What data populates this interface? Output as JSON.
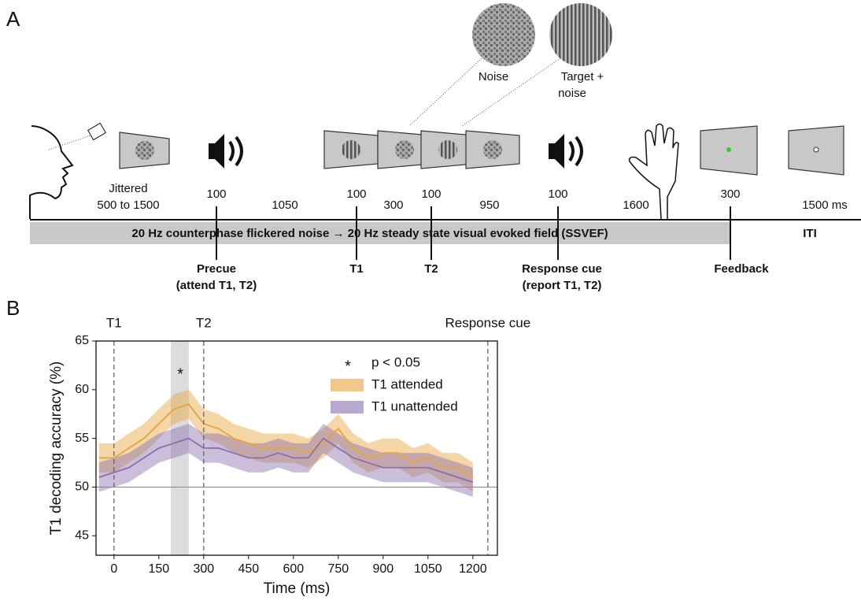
{
  "panels": [
    "A",
    "B"
  ],
  "diagram": {
    "durations": [
      "Jittered",
      "500 to 1500",
      "100",
      "1050",
      "100",
      "300",
      "100",
      "950",
      "100",
      "1600",
      "300",
      "1500 ms"
    ],
    "bar_text": "20 Hz counterphase flickered noise → 20 Hz steady state visual evoked field (SSVEF)",
    "iti": "ITI",
    "events": [
      "Precue",
      "(attend T1, T2)",
      "T1",
      "T2",
      "Response cue",
      "(report T1, T2)",
      "Feedback"
    ],
    "callouts": [
      "Noise",
      "Target +",
      "noise"
    ]
  },
  "chart_data": {
    "type": "line",
    "xlabel": "Time (ms)",
    "ylabel": "T1 decoding accuracy (%)",
    "x": [
      -50,
      0,
      50,
      100,
      150,
      200,
      250,
      300,
      350,
      400,
      450,
      500,
      550,
      600,
      650,
      700,
      750,
      800,
      850,
      900,
      950,
      1000,
      1050,
      1100,
      1150,
      1200
    ],
    "series": [
      {
        "name": "T1 attended",
        "color": "#e8a33a",
        "values": [
          53,
          53,
          54,
          55,
          56.5,
          58,
          58.5,
          56.5,
          56,
          55,
          54.5,
          54,
          54,
          54,
          53.5,
          54.5,
          56,
          54,
          53,
          53.5,
          53.5,
          52.5,
          53,
          52,
          52,
          51
        ],
        "errors": [
          1.5,
          1.5,
          1.5,
          1.5,
          1.5,
          1.5,
          1.5,
          1.5,
          1.5,
          1.5,
          1.5,
          1.5,
          1.5,
          1.5,
          1.5,
          1.5,
          1.5,
          1.5,
          1.5,
          1.5,
          1.5,
          1.5,
          1.5,
          1.5,
          1.5,
          1.5
        ]
      },
      {
        "name": "T1 unattended",
        "color": "#8a6fb0",
        "values": [
          51,
          51.5,
          52,
          53,
          54,
          54.5,
          55,
          54,
          54,
          53.5,
          53,
          53,
          53.5,
          53,
          53,
          55,
          54,
          53,
          52.5,
          52,
          52,
          52,
          52,
          51.5,
          51,
          50.5
        ],
        "errors": [
          1.5,
          1.5,
          1.5,
          1.5,
          1.5,
          1.5,
          1.5,
          1.5,
          1.5,
          1.5,
          1.5,
          1.5,
          1.5,
          1.5,
          1.5,
          1.5,
          1.5,
          1.5,
          1.5,
          1.5,
          1.5,
          1.5,
          1.5,
          1.5,
          1.5,
          1.5
        ]
      }
    ],
    "xlim": [
      -60,
      1282
    ],
    "ylim": [
      43,
      65
    ],
    "xticks": [
      0,
      150,
      300,
      450,
      600,
      750,
      900,
      1050,
      1200
    ],
    "yticks": [
      45,
      50,
      55,
      60,
      65
    ],
    "vlines": [
      {
        "x": 0,
        "label": "T1"
      },
      {
        "x": 300,
        "label": "T2"
      },
      {
        "x": 1250,
        "label": "Response cue"
      }
    ],
    "hline": 50,
    "shaded": [
      190,
      250
    ],
    "star": {
      "x": 222,
      "y": 62,
      "label": "*"
    },
    "significance_label": "p < 0.05",
    "legend": "upper right"
  }
}
